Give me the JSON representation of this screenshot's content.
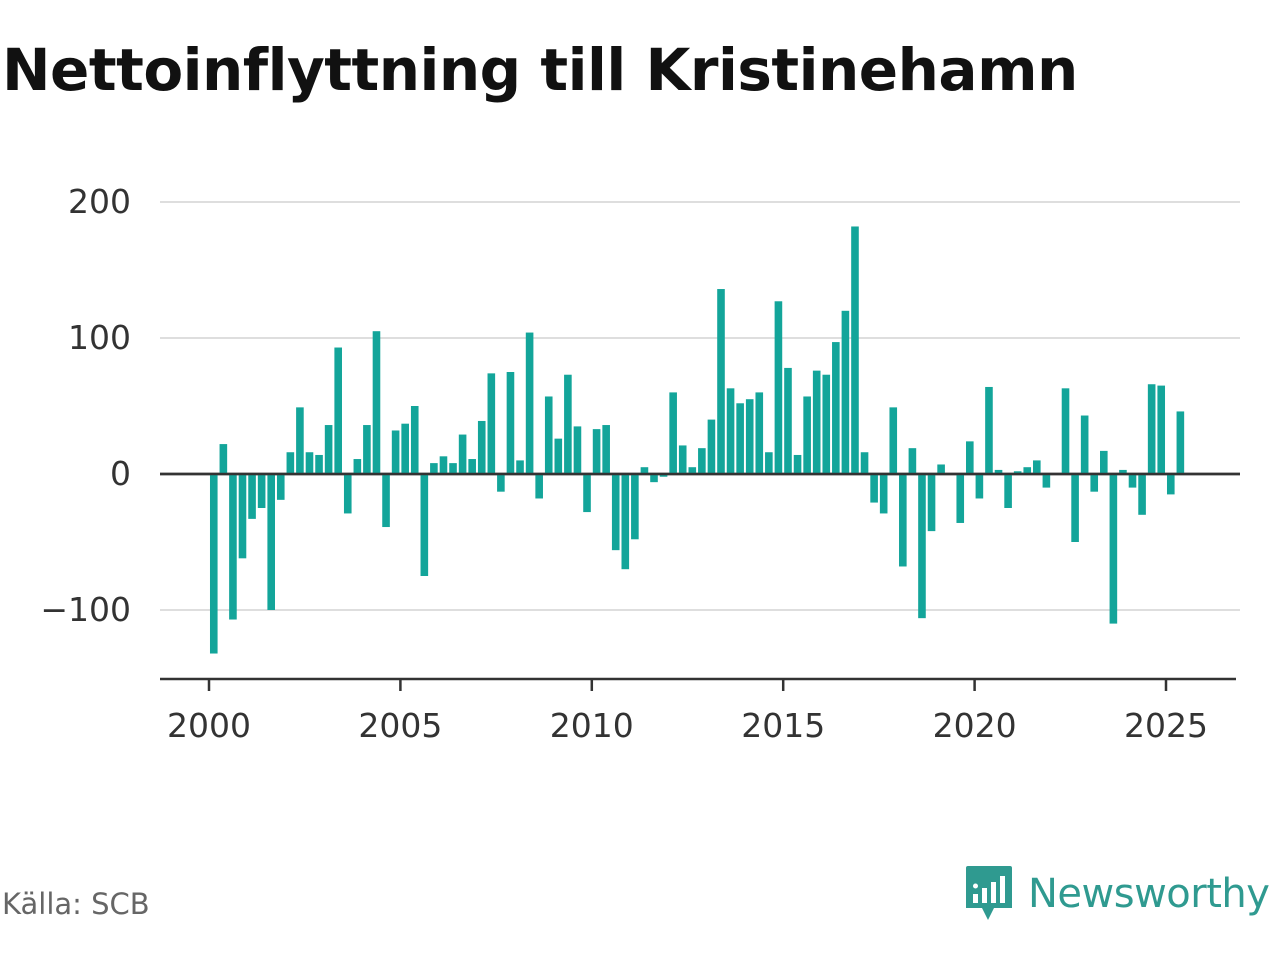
{
  "chart_data": {
    "type": "bar",
    "title": "Nettoinflyttning till Kristinehamn",
    "xlabel": "",
    "ylabel": "",
    "frequency": "quarterly",
    "start": "2000 Q1",
    "x_ticks": [
      "2000",
      "2005",
      "2010",
      "2015",
      "2020",
      "2025"
    ],
    "y_ticks": [
      "200",
      "100",
      "0",
      "−100"
    ],
    "ylim": [
      -150,
      200
    ],
    "grid": true,
    "bar_color": "#13a59a",
    "series": [
      {
        "values": [
          -132,
          22,
          -107,
          -62,
          -33,
          -25,
          -100,
          -19,
          16,
          49,
          16,
          14,
          36,
          93,
          -29,
          11,
          36,
          105,
          -39,
          32,
          37,
          50,
          -75,
          8,
          13,
          8,
          29,
          11,
          39,
          74,
          -13,
          75,
          10,
          104,
          -18,
          57,
          26,
          73,
          35,
          -28,
          33,
          36,
          -56,
          -70,
          -48,
          5,
          -6,
          -2,
          60,
          21,
          5,
          19,
          40,
          136,
          63,
          52,
          55,
          60,
          16,
          127,
          78,
          14,
          57,
          76,
          73,
          97,
          120,
          182,
          16,
          -21,
          -29,
          49,
          -68,
          19,
          -106,
          -42,
          7,
          0,
          -36,
          24,
          -18,
          64,
          3,
          -25,
          2,
          5,
          10,
          -10,
          0,
          63,
          -50,
          43,
          -13,
          17,
          -110,
          3,
          -10,
          -30,
          66,
          65,
          -15,
          46
        ]
      }
    ]
  },
  "footer": {
    "source": "Källa: SCB",
    "brand": "Newsworthy",
    "brand_color": "#2f9a90",
    "logo_icon": "newsworthy-logo-icon"
  }
}
